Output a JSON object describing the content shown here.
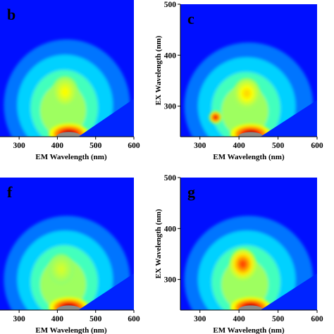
{
  "chart_data": [
    {
      "type": "heatmap",
      "panel": "b",
      "xlabel": "EM Wavelength (nm)",
      "ylabel": "",
      "xlim": [
        250,
        600
      ],
      "ylim": [
        240,
        500
      ],
      "xticks": [
        300,
        400,
        500,
        600
      ],
      "yticks": [],
      "colormap": "blue-green-yellow-red (jet)",
      "peaks": [
        {
          "em": 420,
          "ex": 325,
          "level": 0.62
        },
        {
          "em": 430,
          "ex": 245,
          "level": 0.98
        }
      ]
    },
    {
      "type": "heatmap",
      "panel": "c",
      "xlabel": "EM Wavelength (nm)",
      "ylabel": "EX Wavelength (nm)",
      "xlim": [
        250,
        600
      ],
      "ylim": [
        240,
        500
      ],
      "xticks": [
        300,
        400,
        500,
        600
      ],
      "yticks": [
        300,
        400,
        500
      ],
      "colormap": "blue-green-yellow-red (jet)",
      "peaks": [
        {
          "em": 340,
          "ex": 278,
          "level": 0.9
        },
        {
          "em": 420,
          "ex": 325,
          "level": 0.66
        },
        {
          "em": 430,
          "ex": 245,
          "level": 0.98
        }
      ]
    },
    {
      "type": "heatmap",
      "panel": "f",
      "xlabel": "EM Wavelength (nm)",
      "ylabel": "",
      "xlim": [
        250,
        600
      ],
      "ylim": [
        240,
        500
      ],
      "xticks": [
        300,
        400,
        500,
        600
      ],
      "yticks": [],
      "colormap": "blue-green-yellow-red (jet)",
      "peaks": [
        {
          "em": 410,
          "ex": 320,
          "level": 0.58
        },
        {
          "em": 430,
          "ex": 245,
          "level": 0.98
        }
      ]
    },
    {
      "type": "heatmap",
      "panel": "g",
      "xlabel": "EM Wavelength (nm)",
      "ylabel": "EX Wavelength (nm)",
      "xlim": [
        250,
        600
      ],
      "ylim": [
        240,
        500
      ],
      "xticks": [
        300,
        400,
        500,
        600
      ],
      "yticks": [
        300,
        400,
        500
      ],
      "colormap": "blue-green-yellow-red (jet)",
      "peaks": [
        {
          "em": 410,
          "ex": 330,
          "level": 0.8
        },
        {
          "em": 430,
          "ex": 245,
          "level": 0.98
        }
      ]
    }
  ]
}
